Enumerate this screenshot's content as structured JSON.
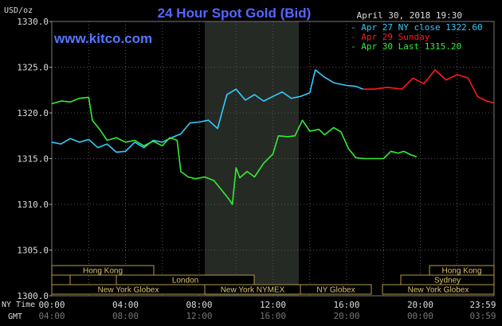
{
  "chart_data": {
    "type": "line",
    "title": "24 Hour Spot Gold (Bid)",
    "date_stamp": "April 30, 2018 19:30",
    "watermark": "www.kitco.com",
    "ylabel": "USD/oz",
    "ylim": [
      1300,
      1330
    ],
    "y_ticks": [
      "1330.0",
      "1325.0",
      "1320.0",
      "1315.0",
      "1310.0",
      "1305.0",
      "1300.0"
    ],
    "time_row_labels": [
      "NY Time",
      "GMT"
    ],
    "ny_time_ticks": [
      "00:00",
      "04:00",
      "08:00",
      "12:00",
      "16:00",
      "20:00",
      "23:59"
    ],
    "gmt_ticks": [
      "04:00",
      "08:00",
      "12:00",
      "16:00",
      "20:00",
      "00:00",
      "03:59"
    ],
    "legend": {
      "position": "top-right",
      "entries": [
        "Apr 27 NY close 1322.60",
        "Apr 29 Sunday",
        "Apr 30 Last 1315.20"
      ]
    },
    "markets": {
      "hong_kong": "Hong Kong",
      "london": "London",
      "new_york_globex": "New York Globex",
      "new_york_nymex": "New York NYMEX",
      "ny_globex": "NY Globex",
      "sydney": "Sydney"
    },
    "series": [
      {
        "name": "Apr 27 NY close 1322.60",
        "color": "#33ccff",
        "points": [
          [
            0,
            1316.8
          ],
          [
            0.5,
            1316.6
          ],
          [
            1,
            1317.2
          ],
          [
            1.5,
            1316.8
          ],
          [
            2,
            1317.1
          ],
          [
            2.5,
            1316.2
          ],
          [
            3,
            1316.6
          ],
          [
            3.5,
            1315.7
          ],
          [
            4,
            1315.8
          ],
          [
            4.5,
            1316.8
          ],
          [
            5,
            1316.2
          ],
          [
            5.5,
            1317.0
          ],
          [
            6,
            1316.8
          ],
          [
            6.5,
            1317.3
          ],
          [
            7,
            1317.7
          ],
          [
            7.5,
            1318.9
          ],
          [
            8,
            1319.0
          ],
          [
            8.5,
            1319.2
          ],
          [
            9,
            1318.3
          ],
          [
            9.5,
            1322.0
          ],
          [
            10,
            1322.6
          ],
          [
            10.5,
            1321.4
          ],
          [
            11,
            1322.0
          ],
          [
            11.5,
            1321.3
          ],
          [
            12,
            1321.8
          ],
          [
            12.5,
            1322.3
          ],
          [
            13,
            1321.6
          ],
          [
            13.5,
            1321.8
          ],
          [
            14,
            1322.2
          ],
          [
            14.3,
            1324.7
          ],
          [
            14.8,
            1323.9
          ],
          [
            15.3,
            1323.3
          ],
          [
            16,
            1323.0
          ],
          [
            16.5,
            1322.9
          ],
          [
            16.9,
            1322.6
          ]
        ]
      },
      {
        "name": "Apr 29 Sunday",
        "color": "#ff1a1a",
        "points": [
          [
            16.9,
            1322.6
          ],
          [
            17.5,
            1322.6
          ],
          [
            18.2,
            1322.8
          ],
          [
            19,
            1322.6
          ],
          [
            19.6,
            1323.8
          ],
          [
            20.2,
            1323.2
          ],
          [
            20.8,
            1324.7
          ],
          [
            21.4,
            1323.6
          ],
          [
            22,
            1324.2
          ],
          [
            22.6,
            1323.8
          ],
          [
            23.1,
            1321.8
          ],
          [
            23.6,
            1321.3
          ],
          [
            23.99,
            1321.1
          ]
        ]
      },
      {
        "name": "Apr 30 Last 1315.20",
        "color": "#33ee33",
        "points": [
          [
            0,
            1321.0
          ],
          [
            0.5,
            1321.3
          ],
          [
            1,
            1321.2
          ],
          [
            1.5,
            1321.6
          ],
          [
            2,
            1321.7
          ],
          [
            2.2,
            1319.2
          ],
          [
            2.6,
            1318.2
          ],
          [
            3,
            1317.0
          ],
          [
            3.5,
            1317.3
          ],
          [
            4,
            1316.8
          ],
          [
            4.5,
            1317.0
          ],
          [
            5,
            1316.4
          ],
          [
            5.5,
            1316.9
          ],
          [
            6,
            1316.4
          ],
          [
            6.4,
            1317.3
          ],
          [
            6.8,
            1317.0
          ],
          [
            7,
            1313.6
          ],
          [
            7.4,
            1313.0
          ],
          [
            7.8,
            1312.8
          ],
          [
            8.3,
            1313.0
          ],
          [
            8.8,
            1312.6
          ],
          [
            9.2,
            1311.6
          ],
          [
            9.6,
            1310.6
          ],
          [
            9.8,
            1310.0
          ],
          [
            10,
            1314.0
          ],
          [
            10.2,
            1312.9
          ],
          [
            10.6,
            1313.6
          ],
          [
            11,
            1313.0
          ],
          [
            11.5,
            1314.5
          ],
          [
            12,
            1315.5
          ],
          [
            12.3,
            1317.5
          ],
          [
            12.8,
            1317.4
          ],
          [
            13.2,
            1317.5
          ],
          [
            13.6,
            1319.2
          ],
          [
            14,
            1318.0
          ],
          [
            14.5,
            1318.2
          ],
          [
            14.8,
            1317.6
          ],
          [
            15.3,
            1318.4
          ],
          [
            15.7,
            1317.9
          ],
          [
            16.1,
            1316.1
          ],
          [
            16.5,
            1315.1
          ],
          [
            17,
            1315.0
          ],
          [
            17.5,
            1315.0
          ],
          [
            18,
            1315.0
          ],
          [
            18.4,
            1315.8
          ],
          [
            18.8,
            1315.6
          ],
          [
            19.1,
            1315.8
          ],
          [
            19.5,
            1315.4
          ],
          [
            19.8,
            1315.2
          ]
        ]
      }
    ]
  }
}
